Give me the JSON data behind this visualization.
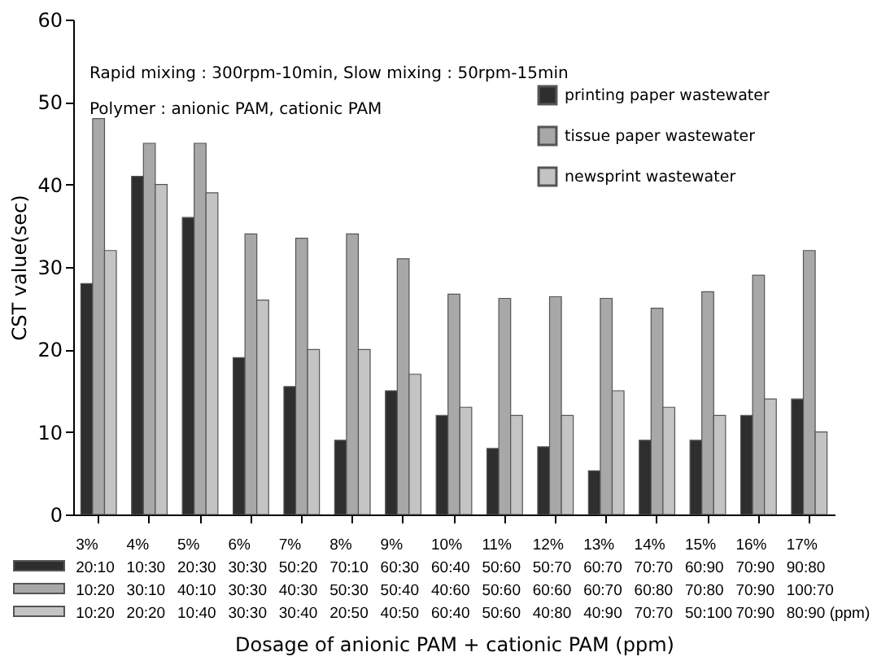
{
  "chart_data": {
    "type": "bar",
    "xlabel": "Dosage of anionic PAM + cationic PAM (ppm)",
    "ylabel": "CST value(sec)",
    "annotations": [
      "Rapid mixing : 300rpm-10min, Slow mixing : 50rpm-15min",
      "Polymer : anionic PAM, cationic PAM"
    ],
    "categories": [
      "3%\n20:10\n10:20\n10:20",
      "4%\n10:30\n30:10\n20:20",
      "5%\n20:30\n40:10\n10:40",
      "6%\n30:30\n30:30\n30:30",
      "7%\n50:20\n40:30\n30:40",
      "8%\n70:10\n50:30\n20:50",
      "9%\n60:30\n50:40\n40:50",
      "10%\n60:40\n40:60\n60:40",
      "11%\n50:60\n50:60\n50:60",
      "12%\n50:70\n60:60\n40:80",
      "13%\n60:70\n60:70\n40:90",
      "14%\n70:70\n60:80\n70:70",
      "15%\n60:90\n70:80\n50:100",
      "16%\n70:90\n70:90\n70:90",
      "17%\n90:80\n100:70\n80:90 (ppm)"
    ],
    "series": [
      {
        "name": "printing paper wastewater",
        "color": "#2e2e2e",
        "values": [
          28,
          41,
          36,
          19,
          15.5,
          9,
          15,
          12,
          8,
          8.2,
          5.3,
          9,
          9,
          12,
          14
        ]
      },
      {
        "name": "tissue paper wastewater",
        "color": "#a8a8a8",
        "values": [
          48,
          45,
          45,
          34,
          33.5,
          34,
          31,
          26.7,
          26.2,
          26.4,
          26.2,
          25,
          27,
          29,
          32
        ]
      },
      {
        "name": "newsprint wastewater",
        "color": "#c4c4c4",
        "values": [
          32,
          40,
          39,
          26,
          20,
          20,
          17,
          13,
          12,
          12,
          15,
          13,
          12,
          14,
          10
        ]
      }
    ],
    "ylim": [
      0,
      60
    ],
    "yticks": [
      0,
      10,
      20,
      30,
      40,
      50,
      60
    ],
    "grid": false,
    "legend": "top right"
  }
}
